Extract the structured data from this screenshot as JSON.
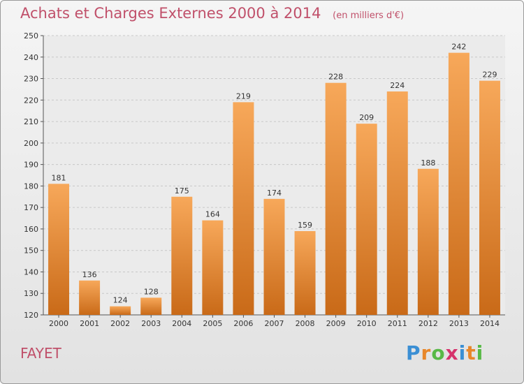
{
  "header": {
    "title": "Achats et Charges Externes 2000 à 2014",
    "subtitle": "(en milliers d'€)"
  },
  "footer": {
    "town": "FAYET",
    "logo_letters": [
      "P",
      "r",
      "o",
      "x",
      "i",
      "t",
      "i"
    ],
    "logo_colors": [
      "#3b8fd4",
      "#e8872a",
      "#58b947",
      "#d6336c",
      "#3b8fd4",
      "#e8872a",
      "#58b947"
    ]
  },
  "chart_data": {
    "type": "bar",
    "title": "Achats et Charges Externes 2000 à 2014",
    "subtitle": "(en milliers d'€)",
    "categories": [
      "2000",
      "2001",
      "2002",
      "2003",
      "2004",
      "2005",
      "2006",
      "2007",
      "2008",
      "2009",
      "2010",
      "2011",
      "2012",
      "2013",
      "2014"
    ],
    "values": [
      181,
      136,
      124,
      128,
      175,
      164,
      219,
      174,
      159,
      228,
      209,
      224,
      188,
      242,
      229
    ],
    "ylim": [
      120,
      250
    ],
    "yticks": [
      120,
      130,
      140,
      150,
      160,
      170,
      180,
      190,
      200,
      210,
      220,
      230,
      240,
      250
    ],
    "grid": true,
    "bar_color_top": "#f7a85a",
    "bar_color_bottom": "#c96a18"
  }
}
